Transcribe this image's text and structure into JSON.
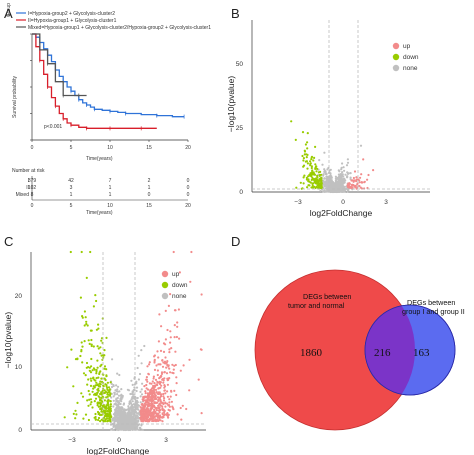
{
  "panels": {
    "a": "A",
    "b": "B",
    "c": "C",
    "d": "D"
  },
  "colors": {
    "km_blue": "#2f73d8",
    "km_red": "#d81e2a",
    "km_gray": "#555555",
    "up": "#f28b8b",
    "down": "#99cc00",
    "none": "#c0c0c0",
    "venn_left": "#ef4a4a",
    "venn_right": "#5b6bf0",
    "venn_overlap": "#7b34c8"
  },
  "chart_data": [
    {
      "type": "line",
      "id": "A",
      "legend_group_label": "Group",
      "legend": [
        "I=Hypoxia-group2 + Glycolysis-cluster2",
        "II=Hypoxia-group1 + Glycolysis-cluster1",
        "Mixed=Hypoxia-group1 + Glycolysis-cluster2/Hypoxia-group2 + Glycolysis-cluster1"
      ],
      "ylabel": "Survival probability",
      "xlabel": "Time(years)",
      "annotation": "p<0.001",
      "xlim": [
        0,
        20
      ],
      "ylim": [
        0,
        1
      ],
      "x_ticks": [
        0,
        5,
        10,
        15,
        20
      ],
      "y_ticks": [
        0.0,
        0.25,
        0.5,
        0.75,
        1.0
      ],
      "series": [
        {
          "name": "I",
          "color": "#2f73d8",
          "x": [
            0,
            0.5,
            1,
            1.5,
            2,
            2.5,
            3,
            3.5,
            4,
            4.5,
            5,
            5.5,
            6,
            6.5,
            7,
            7.5,
            8,
            9,
            10,
            11,
            12,
            14,
            16,
            18,
            19.5
          ],
          "y": [
            1.0,
            0.97,
            0.92,
            0.86,
            0.8,
            0.74,
            0.66,
            0.6,
            0.55,
            0.5,
            0.46,
            0.42,
            0.38,
            0.35,
            0.33,
            0.31,
            0.29,
            0.28,
            0.27,
            0.26,
            0.25,
            0.24,
            0.23,
            0.22,
            0.22
          ]
        },
        {
          "name": "II",
          "color": "#d81e2a",
          "x": [
            0,
            0.5,
            1,
            1.5,
            2,
            2.5,
            3,
            3.5,
            4,
            4.5,
            5,
            6,
            7,
            8,
            10,
            12,
            14,
            16
          ],
          "y": [
            1.0,
            0.88,
            0.75,
            0.62,
            0.5,
            0.4,
            0.32,
            0.25,
            0.2,
            0.16,
            0.14,
            0.12,
            0.11,
            0.11,
            0.11,
            0.11,
            0.11,
            0.11
          ]
        },
        {
          "name": "Mixed",
          "color": "#555555",
          "x": [
            0,
            1,
            2,
            3,
            4,
            5,
            6,
            7
          ],
          "y": [
            1.0,
            0.85,
            0.72,
            0.55,
            0.42,
            0.42,
            0.42,
            0.42
          ]
        }
      ],
      "risk_table": {
        "title": "Number at risk",
        "rows": [
          {
            "label": "I",
            "values": [
              "379",
              "42",
              "7",
              "2",
              "0"
            ]
          },
          {
            "label": "II",
            "values": [
              "102",
              "3",
              "1",
              "1",
              "0"
            ]
          },
          {
            "label": "Mixed",
            "values": [
              "8",
              "1",
              "1",
              "0",
              "0"
            ]
          }
        ],
        "xlabel": "Time(years)"
      }
    },
    {
      "type": "scatter",
      "id": "B",
      "xlabel": "log2FoldChange",
      "ylabel": "−log10(pvalue)",
      "x_ticks": [
        "−3",
        "0",
        "3"
      ],
      "y_ticks": [
        "0",
        "25",
        "50"
      ],
      "legend": [
        "up",
        "down",
        "none"
      ],
      "thresholds": {
        "fc": [
          -1,
          1
        ],
        "p": 1.3
      }
    },
    {
      "type": "scatter",
      "id": "C",
      "xlabel": "log2FoldChange",
      "ylabel": "−log10(pvalue)",
      "x_ticks": [
        "−3",
        "0",
        "3"
      ],
      "y_ticks": [
        "0",
        "10",
        "20"
      ],
      "legend": [
        "up",
        "down",
        "none"
      ],
      "thresholds": {
        "fc": [
          -1,
          1
        ],
        "p": 1.3
      }
    },
    {
      "type": "venn",
      "id": "D",
      "sets": [
        {
          "label_line1": "DEGs between",
          "label_line2": "tumor and normal",
          "only": "1860"
        },
        {
          "label_line1": "DEGs between",
          "label_line2": "group I and group II",
          "only": "163"
        }
      ],
      "intersection": "216"
    }
  ]
}
